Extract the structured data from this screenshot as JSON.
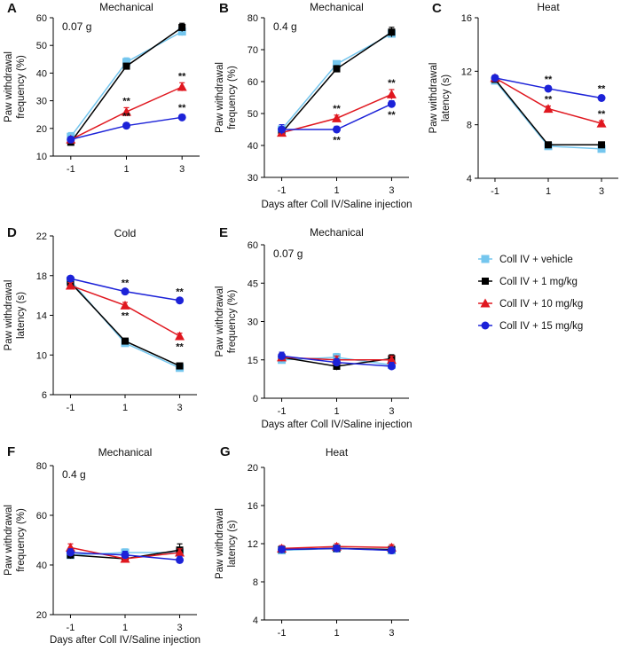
{
  "figure": {
    "common_xlabel": "Days after Coll IV/Saline injection"
  },
  "legend": {
    "position": "right",
    "entries": [
      {
        "label": "Coll IV + vehicle",
        "color": "#74c6ee",
        "marker": "square"
      },
      {
        "label": "Coll IV + 1 mg/kg",
        "color": "#000000",
        "marker": "square"
      },
      {
        "label": "Coll IV + 10 mg/kg",
        "color": "#e0171f",
        "marker": "triangle"
      },
      {
        "label": "Coll IV + 15 mg/kg",
        "color": "#1c22d8",
        "marker": "circle"
      }
    ]
  },
  "chart_data": [
    {
      "panel": "A",
      "type": "line",
      "title": "Mechanical",
      "note": "0.07 g",
      "ylabel": "Paw withdrawal frequency (%)",
      "xlabel": "",
      "x": [
        -1,
        1,
        3
      ],
      "ylim": [
        10,
        60
      ],
      "yticks": [
        10,
        20,
        30,
        40,
        50,
        60
      ],
      "series": [
        {
          "name": "Coll IV + vehicle",
          "values": [
            17,
            44,
            55
          ],
          "err": [
            1.5,
            1.5,
            1.5
          ]
        },
        {
          "name": "Coll IV + 1 mg/kg",
          "values": [
            15,
            42.5,
            56.5
          ],
          "err": [
            1,
            1,
            1.5
          ]
        },
        {
          "name": "Coll IV + 10 mg/kg",
          "values": [
            16,
            26,
            35
          ],
          "err": [
            1,
            1.5,
            1.5
          ],
          "stars": [
            null,
            "**",
            "**"
          ],
          "star_pos": "above"
        },
        {
          "name": "Coll IV + 15 mg/kg",
          "values": [
            16,
            21,
            24
          ],
          "err": [
            1,
            1,
            1
          ],
          "stars": [
            null,
            "**",
            "**"
          ],
          "star_pos": "above"
        }
      ]
    },
    {
      "panel": "B",
      "type": "line",
      "title": "Mechanical",
      "note": "0.4 g",
      "ylabel": "Paw withdrawal frequency (%)",
      "xlabel": "Days after Coll IV/Saline injection",
      "x": [
        -1,
        1,
        3
      ],
      "ylim": [
        30,
        80
      ],
      "yticks": [
        30,
        40,
        50,
        60,
        70,
        80
      ],
      "series": [
        {
          "name": "Coll IV + vehicle",
          "values": [
            45,
            65.5,
            75
          ],
          "err": [
            1,
            1,
            1
          ]
        },
        {
          "name": "Coll IV + 1 mg/kg",
          "values": [
            44,
            64,
            75.5
          ],
          "err": [
            1,
            1,
            1.5
          ]
        },
        {
          "name": "Coll IV + 10 mg/kg",
          "values": [
            44,
            48.5,
            56
          ],
          "err": [
            1,
            1,
            1.5
          ],
          "stars": [
            null,
            "**",
            "**"
          ],
          "star_pos": "above"
        },
        {
          "name": "Coll IV + 15 mg/kg",
          "values": [
            45,
            45,
            53
          ],
          "err": [
            1.5,
            1,
            1
          ],
          "stars": [
            null,
            "**",
            "**"
          ],
          "star_pos": "below"
        }
      ]
    },
    {
      "panel": "C",
      "type": "line",
      "title": "Heat",
      "note": "",
      "ylabel": "Paw withdrawal latency (s)",
      "xlabel": "",
      "x": [
        -1,
        1,
        3
      ],
      "ylim": [
        4,
        16
      ],
      "yticks": [
        4,
        8,
        12,
        16
      ],
      "series": [
        {
          "name": "Coll IV + vehicle",
          "values": [
            11.3,
            6.4,
            6.2
          ],
          "err": [
            0.2,
            0.2,
            0.2
          ]
        },
        {
          "name": "Coll IV + 1 mg/kg",
          "values": [
            11.4,
            6.5,
            6.5
          ],
          "err": [
            0.2,
            0.2,
            0.2
          ]
        },
        {
          "name": "Coll IV + 10 mg/kg",
          "values": [
            11.5,
            9.2,
            8.1
          ],
          "err": [
            0.2,
            0.2,
            0.2
          ],
          "stars": [
            null,
            "**",
            "**"
          ],
          "star_pos": "above"
        },
        {
          "name": "Coll IV + 15 mg/kg",
          "values": [
            11.5,
            10.7,
            10
          ],
          "err": [
            0.2,
            0.2,
            0.2
          ],
          "stars": [
            null,
            "**",
            "**"
          ],
          "star_pos": "above"
        }
      ]
    },
    {
      "panel": "D",
      "type": "line",
      "title": "Cold",
      "note": "",
      "ylabel": "Paw withdrawal latency (s)",
      "xlabel": "",
      "x": [
        -1,
        1,
        3
      ],
      "ylim": [
        6,
        22
      ],
      "yticks": [
        6,
        10,
        14,
        18,
        22
      ],
      "series": [
        {
          "name": "Coll IV + vehicle",
          "values": [
            17.5,
            11.2,
            8.7
          ],
          "err": [
            0.2,
            0.2,
            0.2
          ]
        },
        {
          "name": "Coll IV + 1 mg/kg",
          "values": [
            17.3,
            11.4,
            8.9
          ],
          "err": [
            0.2,
            0.2,
            0.2
          ]
        },
        {
          "name": "Coll IV + 10 mg/kg",
          "values": [
            17,
            15,
            11.9
          ],
          "err": [
            0.3,
            0.3,
            0.3
          ],
          "stars": [
            null,
            "**",
            "**"
          ],
          "star_pos": "below"
        },
        {
          "name": "Coll IV + 15 mg/kg",
          "values": [
            17.7,
            16.4,
            15.5
          ],
          "err": [
            0.2,
            0.2,
            0.2
          ],
          "stars": [
            null,
            "**",
            "**"
          ],
          "star_pos": "above"
        }
      ]
    },
    {
      "panel": "E",
      "type": "line",
      "title": "Mechanical",
      "note": "0.07 g",
      "ylabel": "Paw withdrawal frequency (%)",
      "xlabel": "Days after Coll IV/Saline injection",
      "x": [
        -1,
        1,
        3
      ],
      "ylim": [
        0,
        60
      ],
      "yticks": [
        0,
        15,
        30,
        45,
        60
      ],
      "series": [
        {
          "name": "Coll IV + vehicle",
          "values": [
            15,
            16,
            13
          ],
          "err": [
            1.5,
            1.5,
            1.5
          ]
        },
        {
          "name": "Coll IV + 1 mg/kg",
          "values": [
            16,
            12.5,
            15.5
          ],
          "err": [
            1.5,
            1.5,
            1.5
          ]
        },
        {
          "name": "Coll IV + 10 mg/kg",
          "values": [
            16,
            15,
            15
          ],
          "err": [
            1.5,
            1.5,
            1.5
          ]
        },
        {
          "name": "Coll IV + 15 mg/kg",
          "values": [
            16.5,
            14,
            12.5
          ],
          "err": [
            1.5,
            1.5,
            1.5
          ]
        }
      ]
    },
    {
      "panel": "F",
      "type": "line",
      "title": "Mechanical",
      "note": "0.4 g",
      "ylabel": "Paw withdrawal frequency (%)",
      "xlabel": "Days after Coll IV/Saline injection",
      "x": [
        -1,
        1,
        3
      ],
      "ylim": [
        20,
        80
      ],
      "yticks": [
        20,
        40,
        60,
        80
      ],
      "series": [
        {
          "name": "Coll IV + vehicle",
          "values": [
            44,
            45,
            45
          ],
          "err": [
            1.5,
            1.5,
            1.5
          ]
        },
        {
          "name": "Coll IV + 1 mg/kg",
          "values": [
            44,
            42.5,
            46
          ],
          "err": [
            1.5,
            1.5,
            2.5
          ]
        },
        {
          "name": "Coll IV + 10 mg/kg",
          "values": [
            47,
            42.5,
            45
          ],
          "err": [
            1.5,
            1.5,
            1.5
          ]
        },
        {
          "name": "Coll IV + 15 mg/kg",
          "values": [
            45,
            44,
            42
          ],
          "err": [
            1.5,
            1.5,
            1.5
          ]
        }
      ]
    },
    {
      "panel": "G",
      "type": "line",
      "title": "Heat",
      "note": "",
      "ylabel": "Paw withdrawal latency (s)",
      "xlabel": "",
      "x": [
        -1,
        1,
        3
      ],
      "ylim": [
        4,
        20
      ],
      "yticks": [
        4,
        8,
        12,
        16,
        20
      ],
      "series": [
        {
          "name": "Coll IV + vehicle",
          "values": [
            11.3,
            11.5,
            11.3
          ],
          "err": [
            0.3,
            0.3,
            0.3
          ]
        },
        {
          "name": "Coll IV + 1 mg/kg",
          "values": [
            11.4,
            11.5,
            11.4
          ],
          "err": [
            0.3,
            0.3,
            0.3
          ]
        },
        {
          "name": "Coll IV + 10 mg/kg",
          "values": [
            11.5,
            11.7,
            11.6
          ],
          "err": [
            0.3,
            0.3,
            0.3
          ]
        },
        {
          "name": "Coll IV + 15 mg/kg",
          "values": [
            11.4,
            11.5,
            11.3
          ],
          "err": [
            0.3,
            0.3,
            0.3
          ]
        }
      ]
    }
  ]
}
